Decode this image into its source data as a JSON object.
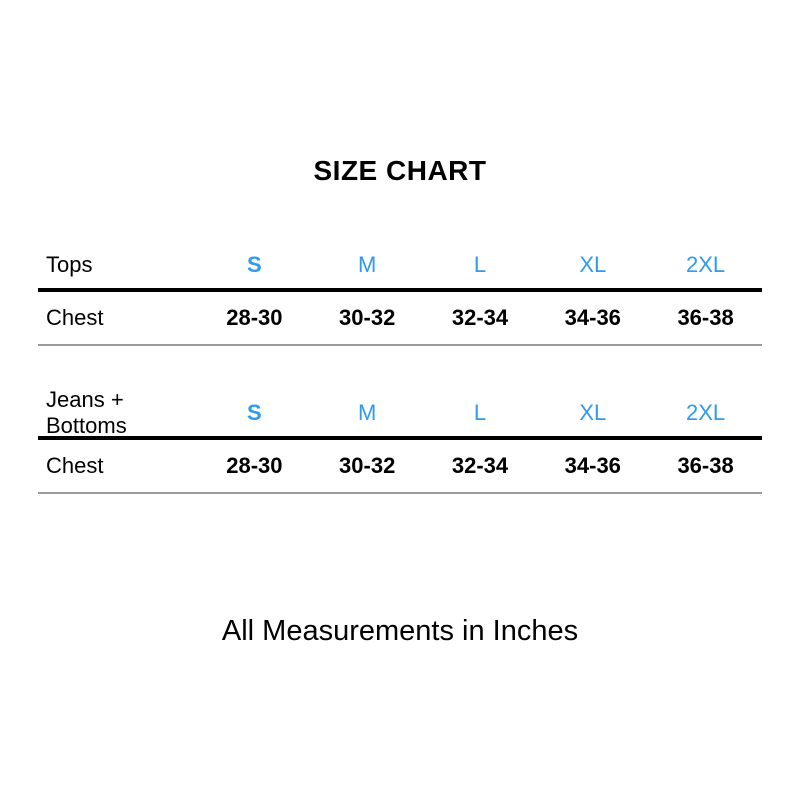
{
  "title": "SIZE CHART",
  "footer_note": "All Measurements in Inches",
  "colors": {
    "size_accent": "#2e9bf0",
    "text": "#000000",
    "divider_thick": "#000000",
    "divider_thin": "#9a9a9a"
  },
  "tables": [
    {
      "category": "Tops",
      "size_headers": [
        "S",
        "M",
        "L",
        "XL",
        "2XL"
      ],
      "rows": [
        {
          "label": "Chest",
          "values": [
            "28-30",
            "30-32",
            "32-34",
            "34-36",
            "36-38"
          ]
        }
      ]
    },
    {
      "category": "Jeans + Bottoms",
      "size_headers": [
        "S",
        "M",
        "L",
        "XL",
        "2XL"
      ],
      "rows": [
        {
          "label": "Chest",
          "values": [
            "28-30",
            "30-32",
            "32-34",
            "34-36",
            "36-38"
          ]
        }
      ]
    }
  ]
}
